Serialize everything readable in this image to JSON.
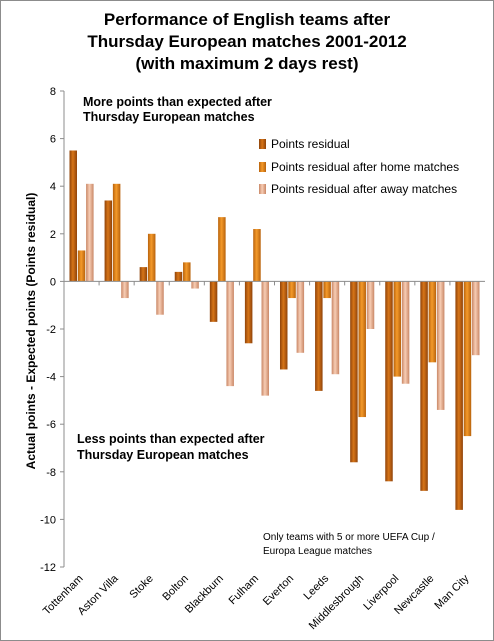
{
  "chart_data": {
    "type": "bar",
    "title": [
      "Performance of English teams after",
      "Thursday European matches 2001-2012",
      "(with maximum 2 days rest)"
    ],
    "ylabel": "Actual points - Expected points (Points residual)",
    "xlabel": "",
    "ylim": [
      -12,
      8
    ],
    "yticks": [
      8,
      6,
      4,
      2,
      0,
      -2,
      -4,
      -6,
      -8,
      -10,
      -12
    ],
    "grid": false,
    "legend_position": "top-right",
    "categories": [
      "Tottenham",
      "Aston Villa",
      "Stoke",
      "Bolton",
      "Blackburn",
      "Fulham",
      "Everton",
      "Leeds",
      "Middlesbrough",
      "Liverpool",
      "Newcastle",
      "Man City"
    ],
    "series": [
      {
        "name": "Points residual",
        "color": "#c0600e",
        "values": [
          5.5,
          3.4,
          0.6,
          0.4,
          -1.7,
          -2.6,
          -3.7,
          -4.6,
          -7.6,
          -8.4,
          -8.8,
          -9.6
        ]
      },
      {
        "name": "Points residual after home matches",
        "color": "#e8861c",
        "values": [
          1.3,
          4.1,
          2.0,
          0.8,
          2.7,
          2.2,
          -0.7,
          -0.7,
          -5.7,
          -4.0,
          -3.4,
          -6.5
        ]
      },
      {
        "name": "Points residual after away matches",
        "color": "#e3a98a",
        "values": [
          4.1,
          -0.7,
          -1.4,
          -0.3,
          -4.4,
          -4.8,
          -3.0,
          -3.9,
          -2.0,
          -4.3,
          -5.4,
          -3.1
        ]
      }
    ],
    "annotations": {
      "top": [
        "More points than expected after",
        "Thursday European matches"
      ],
      "bottom": [
        "Less points than expected after",
        "Thursday European matches"
      ],
      "note": [
        "Only teams with 5 or more UEFA Cup /",
        "Europa League matches"
      ]
    }
  }
}
